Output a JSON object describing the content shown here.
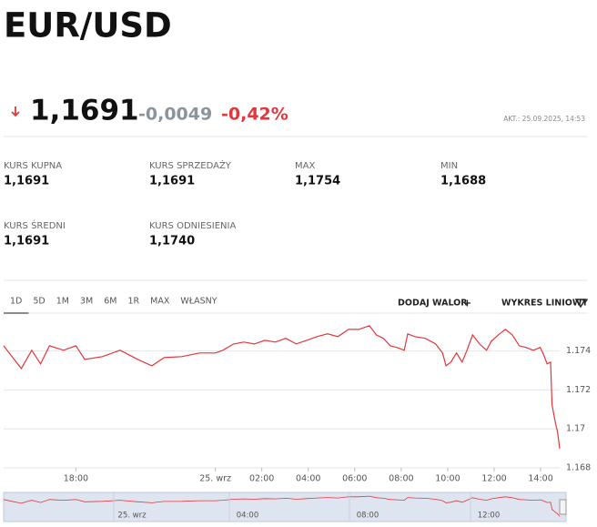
{
  "header": {
    "title": "EUR/USD",
    "price": "1,1691",
    "change": "-0,0049",
    "change_pct": "-0,42%",
    "updated": "AKT.: 25.09.2025, 14:53"
  },
  "stats": [
    {
      "label": "KURS KUPNA",
      "value": "1,1691"
    },
    {
      "label": "KURS SPRZEDAŻY",
      "value": "1,1691"
    },
    {
      "label": "MAX",
      "value": "1,1754"
    },
    {
      "label": "MIN",
      "value": "1,1688"
    },
    {
      "label": "KURS ŚREDNI",
      "value": "1,1691"
    },
    {
      "label": "KURS ODNIESIENIA",
      "value": "1,1740"
    }
  ],
  "tabs": [
    "1D",
    "5D",
    "1M",
    "3M",
    "6M",
    "1R",
    "MAX",
    "WŁASNY"
  ],
  "actions": {
    "add": "DODAJ WALOR",
    "chart_type": "WYKRES LINIOWY"
  },
  "chart_data": {
    "type": "line",
    "x": [
      -9.11,
      -8.66,
      -8.35,
      -7.9,
      -7.52,
      -7.14,
      -6.53,
      -6,
      -5.62,
      -4.86,
      -4.1,
      -3.34,
      -2.73,
      -2.2,
      -1.44,
      -0.68,
      0,
      0.33,
      0.78,
      1.23,
      1.68,
      2.13,
      2.58,
      3.03,
      3.48,
      3.93,
      4.38,
      4.83,
      5.28,
      5.73,
      6.18,
      6.63,
      6.93,
      7.23,
      7.53,
      7.83,
      8.13,
      8.28,
      8.58,
      9.03,
      9.48,
      9.78,
      9.93,
      10.14,
      10.38,
      10.62,
      10.83,
      11.07,
      11.37,
      11.67,
      11.88,
      12.18,
      12.48,
      12.78,
      13.08,
      13.38,
      13.68,
      13.98,
      14.13,
      14.28,
      14.43,
      14.49,
      14.64,
      14.73,
      14.82
    ],
    "series": [
      {
        "color": "#e0383b",
        "values": [
          1.17427,
          1.17357,
          1.1731,
          1.17404,
          1.17334,
          1.17427,
          1.17404,
          1.17427,
          1.17357,
          1.17371,
          1.17404,
          1.17357,
          1.17324,
          1.17366,
          1.17371,
          1.1739,
          1.1739,
          1.17404,
          1.17436,
          1.17446,
          1.17436,
          1.17455,
          1.17446,
          1.17465,
          1.17436,
          1.17455,
          1.17474,
          1.17488,
          1.17474,
          1.17511,
          1.17511,
          1.1753,
          1.17483,
          1.17465,
          1.17427,
          1.17418,
          1.17404,
          1.17488,
          1.17474,
          1.17465,
          1.17436,
          1.1739,
          1.17324,
          1.17343,
          1.1739,
          1.17343,
          1.17404,
          1.17483,
          1.17436,
          1.17404,
          1.1745,
          1.17483,
          1.17511,
          1.17483,
          1.17427,
          1.17418,
          1.17404,
          1.17418,
          1.1738,
          1.17334,
          1.17343,
          1.17123,
          1.17029,
          1.16983,
          1.16898
        ]
      }
    ],
    "xlim": [
      -9.11,
      14.82
    ],
    "xticks": [
      {
        "value": -6,
        "label": "18:00"
      },
      {
        "value": 0,
        "label": "25. wrz"
      },
      {
        "value": 2,
        "label": "02:00"
      },
      {
        "value": 4,
        "label": "04:00"
      },
      {
        "value": 6,
        "label": "06:00"
      },
      {
        "value": 8,
        "label": "08:00"
      },
      {
        "value": 10,
        "label": "10:00"
      },
      {
        "value": 12,
        "label": "12:00"
      },
      {
        "value": 14,
        "label": "14:00"
      }
    ],
    "ylim": [
      1.168,
      1.1759
    ],
    "yticks": [
      1.168,
      1.17,
      1.172,
      1.174
    ],
    "grid": true
  },
  "navigator": {
    "labels": [
      "25. wrz",
      "04:00",
      "08:00",
      "12:00"
    ]
  }
}
